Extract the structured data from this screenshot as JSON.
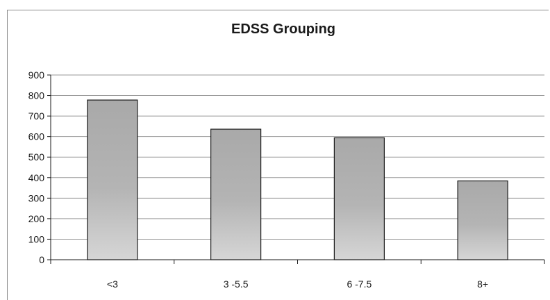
{
  "chart_data": {
    "type": "bar",
    "title": "EDSS Grouping",
    "xlabel": "",
    "ylabel": "",
    "categories": [
      "<3",
      "3 -5.5",
      "6 -7.5",
      "8+"
    ],
    "values": [
      778,
      636,
      594,
      384
    ],
    "ylim": [
      0,
      900
    ],
    "yticks": [
      0,
      100,
      200,
      300,
      400,
      500,
      600,
      700,
      800,
      900
    ],
    "grid": true,
    "legend": "none",
    "bar_color": "#bdbdbd",
    "bar_edge_color": "#1a1a1a",
    "grid_color": "#9a9a9a"
  }
}
